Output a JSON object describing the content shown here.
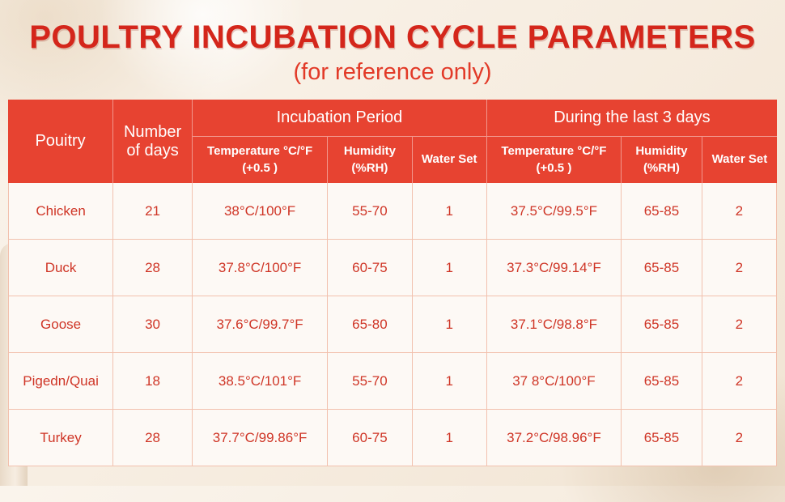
{
  "page": {
    "title": "POULTRY INCUBATION CYCLE PARAMETERS",
    "subtitle": "(for reference only)"
  },
  "colors": {
    "header_bg": "#e74331",
    "header_text": "#ffffff",
    "body_text": "#cf3526",
    "title_text": "#d4261b",
    "cell_border": "#f2c1ae",
    "page_background": "#f6ecdf"
  },
  "chart_data": {
    "type": "table",
    "title": "POULTRY INCUBATION CYCLE PARAMETERS",
    "subtitle": "(for reference only)",
    "header": {
      "poultry": "Pouitry",
      "number_of_days": "Number of days",
      "group_incubation": "Incubation Period",
      "group_last3days": "During the last 3 days",
      "temperature": "Temperature °C/°F (+0.5 )",
      "humidity": "Humidity (%RH)",
      "water_set": "Water Set"
    },
    "columns": [
      "Pouitry",
      "Number of days",
      "Temperature °C/°F (+0.5 )",
      "Humidity (%RH)",
      "Water Set",
      "Temperature °C/°F (+0.5 )",
      "Humidity (%RH)",
      "Water Set"
    ],
    "rows": [
      [
        "Chicken",
        "21",
        "38°C/100°F",
        "55-70",
        "1",
        "37.5°C/99.5°F",
        "65-85",
        "2"
      ],
      [
        "Duck",
        "28",
        "37.8°C/100°F",
        "60-75",
        "1",
        "37.3°C/99.14°F",
        "65-85",
        "2"
      ],
      [
        "Goose",
        "30",
        "37.6°C/99.7°F",
        "65-80",
        "1",
        "37.1°C/98.8°F",
        "65-85",
        "2"
      ],
      [
        "Pigedn/Quai",
        "18",
        "38.5°C/101°F",
        "55-70",
        "1",
        "37 8°C/100°F",
        "65-85",
        "2"
      ],
      [
        "Turkey",
        "28",
        "37.7°C/99.86°F",
        "60-75",
        "1",
        "37.2°C/98.96°F",
        "65-85",
        "2"
      ]
    ]
  }
}
